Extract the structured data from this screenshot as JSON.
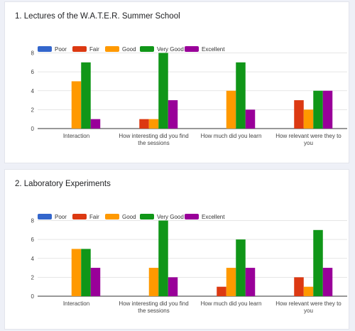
{
  "legend": [
    "Poor",
    "Fair",
    "Good",
    "Very Good",
    "Excellent"
  ],
  "colors": {
    "Poor": "#3366cc",
    "Fair": "#dc3912",
    "Good": "#ff9900",
    "Very Good": "#109618",
    "Excellent": "#990099"
  },
  "sections": [
    {
      "title": "1. Lectures of the W.A.T.E.R. Summer School"
    },
    {
      "title": "2. Laboratory Experiments"
    }
  ],
  "chart_data": [
    {
      "type": "bar",
      "title": "1. Lectures of the W.A.T.E.R. Summer School",
      "categories": [
        [
          "Interaction"
        ],
        [
          "How interesting did you find",
          "the sessions"
        ],
        [
          "How much did you learn"
        ],
        [
          "How relevant were they to",
          "you"
        ]
      ],
      "series": [
        {
          "name": "Poor",
          "values": [
            0,
            0,
            0,
            0
          ]
        },
        {
          "name": "Fair",
          "values": [
            0,
            1,
            0,
            3
          ]
        },
        {
          "name": "Good",
          "values": [
            5,
            1,
            4,
            2
          ]
        },
        {
          "name": "Very Good",
          "values": [
            7,
            8,
            7,
            4
          ]
        },
        {
          "name": "Excellent",
          "values": [
            1,
            3,
            2,
            4
          ]
        }
      ],
      "yticks": [
        "0",
        "2",
        "4",
        "6",
        "8"
      ],
      "ylim": [
        0,
        8
      ],
      "grid": true,
      "legend_position": "top-left"
    },
    {
      "type": "bar",
      "title": "2. Laboratory Experiments",
      "categories": [
        [
          "Interaction"
        ],
        [
          "How interesting did you find",
          "the sessions"
        ],
        [
          "How much did you learn"
        ],
        [
          "How relevant were they to",
          "you"
        ]
      ],
      "series": [
        {
          "name": "Poor",
          "values": [
            0,
            0,
            0,
            0
          ]
        },
        {
          "name": "Fair",
          "values": [
            0,
            0,
            1,
            2
          ]
        },
        {
          "name": "Good",
          "values": [
            5,
            3,
            3,
            1
          ]
        },
        {
          "name": "Very Good",
          "values": [
            5,
            8,
            6,
            7
          ]
        },
        {
          "name": "Excellent",
          "values": [
            3,
            2,
            3,
            3
          ]
        }
      ],
      "yticks": [
        "0",
        "2",
        "4",
        "6",
        "8"
      ],
      "ylim": [
        0,
        8
      ],
      "grid": true,
      "legend_position": "top-left"
    }
  ]
}
